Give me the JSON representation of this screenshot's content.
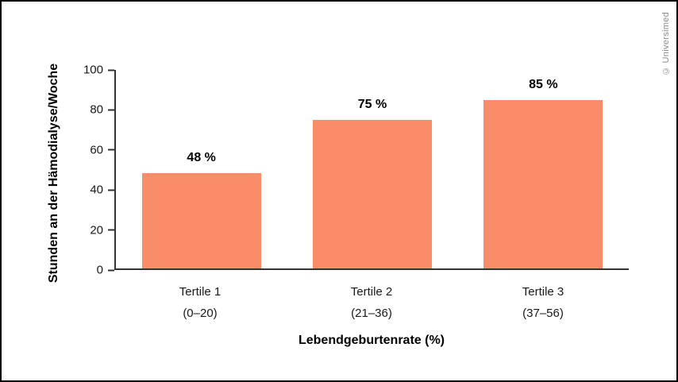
{
  "page": {
    "copyright": "© Universimed"
  },
  "chart_data": {
    "type": "bar",
    "title": "",
    "categories": [
      "Tertile 1",
      "Tertile 2",
      "Tertile 3"
    ],
    "category_sublabels": [
      "(0–20)",
      "(21–36)",
      "(37–56)"
    ],
    "values": [
      48,
      75,
      85
    ],
    "value_labels": [
      "48 %",
      "75 %",
      "85 %"
    ],
    "xlabel": "Lebendgeburtenrate (%)",
    "ylabel": "Stunden an der Hämodialyse/Woche",
    "ylim": [
      0,
      100
    ],
    "yticks": [
      0,
      20,
      40,
      60,
      80,
      100
    ],
    "bar_color": "#F98D6A",
    "axis_color": "#333333",
    "grid": false,
    "legend_position": "none"
  }
}
